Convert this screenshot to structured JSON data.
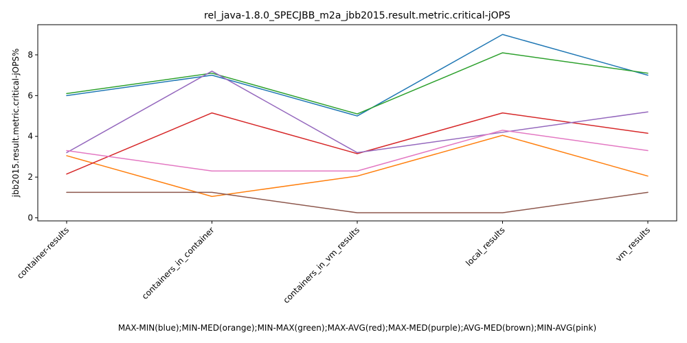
{
  "chart_data": {
    "type": "line",
    "title": "rel_java-1.8.0_SPECJBB_m2a_jbb2015.result.metric.critical-jOPS",
    "xlabel": "MAX-MIN(blue);MIN-MED(orange);MIN-MAX(green);MAX-AVG(red);MAX-MED(purple);AVG-MED(brown);MIN-AVG(pink)",
    "ylabel": "jbb2015.result.metric.critical-jOPS%",
    "categories": [
      "container-results",
      "containers_in_container",
      "containers_in_vm_results",
      "local_results",
      "vm_results"
    ],
    "ylim": [
      -0.15,
      9.48
    ],
    "yticks": [
      0,
      2,
      4,
      6,
      8
    ],
    "grid": false,
    "legend": "none",
    "series": [
      {
        "color": "#1f77b4",
        "values": [
          6.0,
          7.0,
          5.0,
          9.0,
          7.0
        ]
      },
      {
        "color": "#ff7f0e",
        "values": [
          3.05,
          1.05,
          2.05,
          4.05,
          2.05
        ]
      },
      {
        "color": "#2ca02c",
        "values": [
          6.1,
          7.1,
          5.1,
          8.1,
          7.1
        ]
      },
      {
        "color": "#d62728",
        "values": [
          2.15,
          5.15,
          3.15,
          5.15,
          4.15
        ]
      },
      {
        "color": "#9467bd",
        "values": [
          3.2,
          7.2,
          3.2,
          4.2,
          5.2
        ]
      },
      {
        "color": "#8c564b",
        "values": [
          1.25,
          1.25,
          0.25,
          0.25,
          1.25
        ]
      },
      {
        "color": "#e377c2",
        "values": [
          3.3,
          2.3,
          2.3,
          4.3,
          3.3
        ]
      }
    ]
  }
}
